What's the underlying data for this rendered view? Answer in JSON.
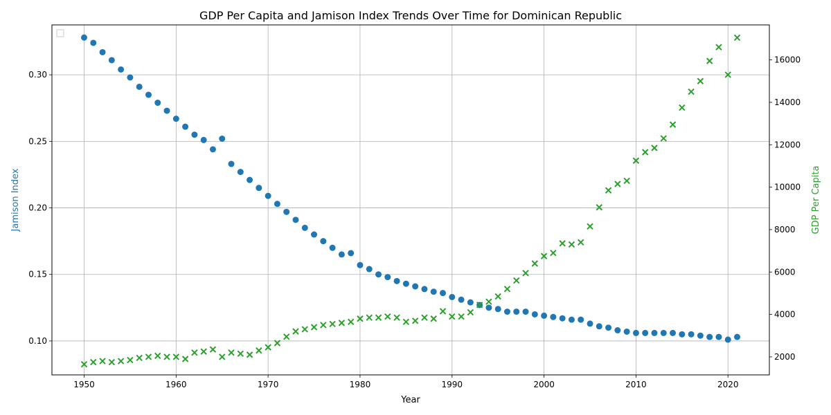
{
  "chart_data": {
    "type": "scatter",
    "title": "GDP Per Capita and Jamison Index Trends Over Time for Dominican Republic",
    "xlabel": "Year",
    "ylabel_left": "Jamison Index",
    "ylabel_right": "GDP Per Capita",
    "xlim": [
      1946.5,
      2024.5
    ],
    "ylim_left": [
      0.0745,
      0.3375
    ],
    "ylim_right": [
      1150,
      17650
    ],
    "xticks": [
      1950,
      1960,
      1970,
      1980,
      1990,
      2000,
      2010,
      2020
    ],
    "yticks_left": [
      0.1,
      0.15,
      0.2,
      0.25,
      0.3
    ],
    "yticks_left_labels": [
      "0.10",
      "0.15",
      "0.20",
      "0.25",
      "0.30"
    ],
    "yticks_right": [
      2000,
      4000,
      6000,
      8000,
      10000,
      12000,
      14000,
      16000
    ],
    "grid": true,
    "colors": {
      "jamison": "#1f77b4",
      "gdp": "#2ca02c"
    },
    "x": [
      1950,
      1951,
      1952,
      1953,
      1954,
      1955,
      1956,
      1957,
      1958,
      1959,
      1960,
      1961,
      1962,
      1963,
      1964,
      1965,
      1966,
      1967,
      1968,
      1969,
      1970,
      1971,
      1972,
      1973,
      1974,
      1975,
      1976,
      1977,
      1978,
      1979,
      1980,
      1981,
      1982,
      1983,
      1984,
      1985,
      1986,
      1987,
      1988,
      1989,
      1990,
      1991,
      1992,
      1993,
      1994,
      1995,
      1996,
      1997,
      1998,
      1999,
      2000,
      2001,
      2002,
      2003,
      2004,
      2005,
      2006,
      2007,
      2008,
      2009,
      2010,
      2011,
      2012,
      2013,
      2014,
      2015,
      2016,
      2017,
      2018,
      2019,
      2020,
      2021
    ],
    "series": [
      {
        "key": "jamison",
        "axis": "left",
        "marker": "circle",
        "values": [
          0.328,
          0.324,
          0.317,
          0.311,
          0.304,
          0.298,
          0.291,
          0.285,
          0.279,
          0.273,
          0.267,
          0.261,
          0.255,
          0.251,
          0.244,
          0.252,
          0.233,
          0.227,
          0.221,
          0.215,
          0.209,
          0.203,
          0.197,
          0.191,
          0.185,
          0.18,
          0.175,
          0.17,
          0.165,
          0.166,
          0.157,
          0.154,
          0.15,
          0.148,
          0.145,
          0.143,
          0.141,
          0.139,
          0.137,
          0.136,
          0.133,
          0.131,
          0.129,
          0.127,
          0.125,
          0.124,
          0.122,
          0.122,
          0.122,
          0.12,
          0.119,
          0.118,
          0.117,
          0.116,
          0.116,
          0.113,
          0.111,
          0.11,
          0.108,
          0.107,
          0.106,
          0.106,
          0.106,
          0.106,
          0.106,
          0.105,
          0.105,
          0.104,
          0.103,
          0.103,
          0.101,
          0.103
        ]
      },
      {
        "key": "gdp",
        "axis": "right",
        "marker": "x",
        "values": [
          1650,
          1750,
          1800,
          1750,
          1800,
          1850,
          1950,
          2000,
          2050,
          2000,
          2000,
          1900,
          2200,
          2250,
          2350,
          2000,
          2200,
          2150,
          2100,
          2300,
          2450,
          2650,
          2950,
          3200,
          3300,
          3400,
          3500,
          3550,
          3600,
          3650,
          3800,
          3850,
          3850,
          3900,
          3850,
          3650,
          3700,
          3850,
          3800,
          4150,
          3900,
          3900,
          4100,
          4450,
          4600,
          4850,
          5200,
          5600,
          5950,
          6400,
          6750,
          6900,
          7350,
          7300,
          7400,
          8150,
          9050,
          9850,
          10150,
          10300,
          11250,
          11650,
          11850,
          12300,
          12950,
          13750,
          14500,
          15000,
          15950,
          16600,
          15300,
          17050
        ]
      }
    ]
  }
}
